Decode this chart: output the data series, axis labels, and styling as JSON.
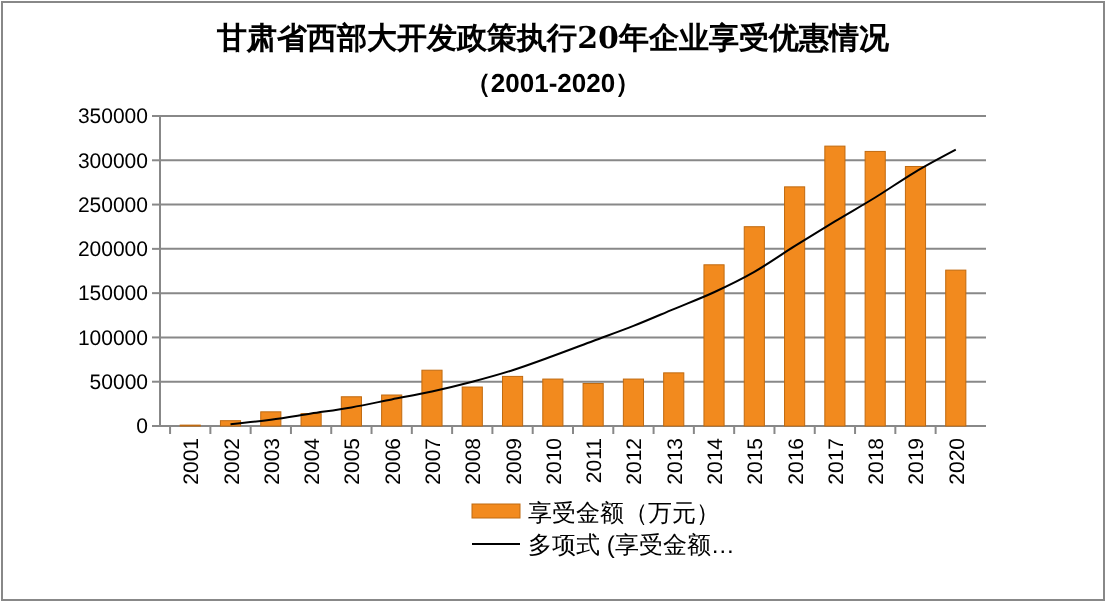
{
  "chart_data": {
    "type": "bar",
    "title": "甘肃省西部大开发政策执行20年企业享受优惠情况",
    "subtitle": "（2001-2020）",
    "categories": [
      "2001",
      "2002",
      "2003",
      "2004",
      "2005",
      "2006",
      "2007",
      "2008",
      "2009",
      "2010",
      "2011",
      "2012",
      "2013",
      "2014",
      "2015",
      "2016",
      "2017",
      "2018",
      "2019",
      "2020"
    ],
    "series": [
      {
        "name": "享受金额（万元）",
        "color": "#f28a1e",
        "values": [
          1000,
          6000,
          16000,
          14000,
          33000,
          35000,
          63000,
          44000,
          56000,
          53000,
          48000,
          53000,
          60000,
          182000,
          225000,
          270000,
          316000,
          310000,
          293000,
          176000
        ]
      },
      {
        "name": "多项式 (享受金额…",
        "type": "line",
        "color": "#000000",
        "values": [
          null,
          2000,
          7000,
          14000,
          21000,
          30000,
          39000,
          50000,
          63000,
          79000,
          96000,
          113000,
          132000,
          151000,
          174000,
          203000,
          231000,
          258000,
          287000,
          312000
        ]
      }
    ],
    "ylim": [
      0,
      350000
    ],
    "yticks": [
      0,
      50000,
      100000,
      150000,
      200000,
      250000,
      300000,
      350000
    ],
    "grid": "y",
    "legend": "bottom"
  }
}
